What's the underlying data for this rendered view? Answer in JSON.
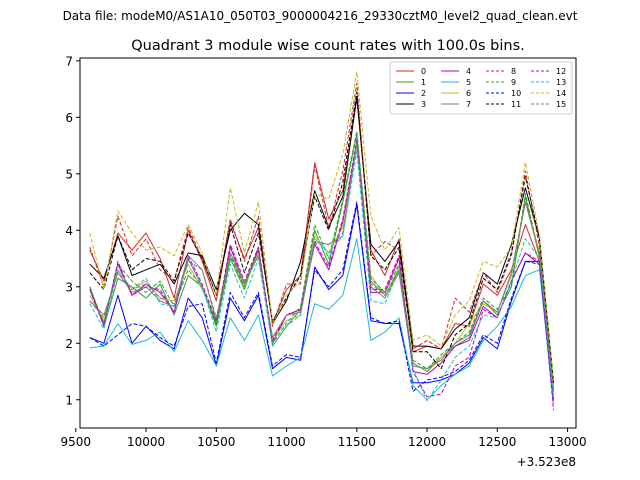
{
  "chart_data": {
    "type": "line",
    "suptitle": "Data file: modeM0/AS1A10_050T03_9000004216_29330cztM0_level2_quad_clean.evt",
    "title": "Quadrant 3 module wise count rates with 100.0s bins.",
    "xlabel": "",
    "ylabel": "",
    "offset_label": "+3.523e8",
    "xlim": [
      9530,
      13060
    ],
    "ylim": [
      0.5,
      7.05
    ],
    "x_ticks": [
      9500,
      10000,
      10500,
      11000,
      11500,
      12000,
      12500,
      13000
    ],
    "x_tick_labels": [
      "9500",
      "10000",
      "10500",
      "11000",
      "11500",
      "12000",
      "12500",
      "13000"
    ],
    "y_ticks": [
      1,
      2,
      3,
      4,
      5,
      6,
      7
    ],
    "y_tick_labels": [
      "1",
      "2",
      "3",
      "4",
      "5",
      "6",
      "7"
    ],
    "grid": false,
    "legend_position": "top-right",
    "legend_columns": 4,
    "x": [
      9600,
      9700,
      9800,
      9900,
      10000,
      10100,
      10200,
      10300,
      10400,
      10500,
      10600,
      10700,
      10800,
      10900,
      11000,
      11100,
      11200,
      11300,
      11400,
      11500,
      11600,
      11700,
      11800,
      11900,
      12000,
      12100,
      12200,
      12300,
      12400,
      12500,
      12600,
      12700,
      12800,
      12900
    ],
    "series": [
      {
        "name": "0",
        "color": "#d62728",
        "dash": "solid",
        "values": [
          3.65,
          3.1,
          3.95,
          3.65,
          3.95,
          3.5,
          2.8,
          4.0,
          3.45,
          2.75,
          4.15,
          3.5,
          4.05,
          2.35,
          2.95,
          3.2,
          5.2,
          4.2,
          4.7,
          6.35,
          3.65,
          3.2,
          3.85,
          1.85,
          1.95,
          1.9,
          2.35,
          2.3,
          3.05,
          2.85,
          3.3,
          4.1,
          3.45,
          1.35
        ]
      },
      {
        "name": "1",
        "color": "#2ca02c",
        "dash": "solid",
        "values": [
          3.0,
          2.3,
          3.15,
          3.0,
          2.8,
          3.05,
          2.5,
          3.2,
          3.0,
          2.3,
          3.5,
          2.95,
          3.7,
          1.95,
          2.3,
          2.6,
          4.0,
          3.4,
          4.5,
          5.7,
          3.1,
          2.85,
          3.3,
          1.65,
          1.5,
          1.75,
          1.95,
          2.1,
          2.75,
          2.5,
          3.0,
          4.6,
          3.5,
          1.15
        ]
      },
      {
        "name": "2",
        "color": "#0000ff",
        "dash": "solid",
        "values": [
          2.1,
          2.0,
          2.85,
          2.0,
          2.3,
          2.05,
          1.9,
          2.8,
          2.45,
          1.6,
          2.8,
          2.4,
          2.85,
          1.55,
          1.75,
          1.7,
          3.35,
          2.95,
          3.2,
          4.45,
          2.4,
          2.35,
          2.35,
          1.3,
          1.3,
          1.35,
          1.45,
          1.65,
          2.1,
          1.9,
          2.75,
          3.45,
          3.45,
          0.95
        ]
      },
      {
        "name": "3",
        "color": "#000000",
        "dash": "solid",
        "values": [
          3.4,
          3.15,
          3.9,
          3.2,
          3.3,
          3.4,
          3.05,
          3.6,
          3.55,
          2.95,
          4.0,
          4.3,
          4.1,
          2.35,
          2.75,
          3.45,
          4.7,
          4.05,
          4.6,
          6.35,
          3.75,
          3.45,
          3.8,
          1.95,
          1.95,
          1.9,
          2.25,
          2.45,
          3.25,
          3.05,
          3.75,
          4.75,
          3.85,
          1.3
        ]
      },
      {
        "name": "4",
        "color": "#bf00bf",
        "dash": "solid",
        "values": [
          2.95,
          2.35,
          3.4,
          2.85,
          3.05,
          2.9,
          2.55,
          3.5,
          3.0,
          2.35,
          3.7,
          3.05,
          3.65,
          2.0,
          2.5,
          2.6,
          3.75,
          3.3,
          4.15,
          5.55,
          2.9,
          2.9,
          3.5,
          1.5,
          1.45,
          1.65,
          1.95,
          2.05,
          2.65,
          2.45,
          3.1,
          3.6,
          3.4,
          1.0
        ]
      },
      {
        "name": "5",
        "color": "#17becf",
        "dash": "solid",
        "values": [
          1.92,
          1.95,
          2.35,
          1.98,
          2.05,
          2.2,
          1.85,
          2.4,
          2.05,
          1.6,
          2.45,
          2.05,
          2.5,
          1.42,
          1.6,
          1.75,
          2.7,
          2.6,
          2.85,
          3.85,
          2.05,
          2.2,
          2.45,
          1.25,
          1.0,
          1.25,
          1.45,
          1.6,
          2.05,
          2.3,
          2.65,
          3.2,
          3.3,
          0.95
        ]
      },
      {
        "name": "6",
        "color": "#bcbd22",
        "dash": "solid",
        "values": [
          2.85,
          2.4,
          3.3,
          2.95,
          3.1,
          2.8,
          2.75,
          3.4,
          2.95,
          2.4,
          3.6,
          3.0,
          3.6,
          2.05,
          2.4,
          2.5,
          3.9,
          3.6,
          4.05,
          5.5,
          3.2,
          2.85,
          3.35,
          1.6,
          1.55,
          1.75,
          2.0,
          2.35,
          2.7,
          2.55,
          3.2,
          4.5,
          3.55,
          1.2
        ]
      },
      {
        "name": "7",
        "color": "#7f7f7f",
        "dash": "solid",
        "values": [
          2.75,
          2.5,
          3.25,
          2.9,
          3.0,
          2.75,
          2.65,
          3.55,
          3.3,
          2.4,
          3.6,
          3.05,
          3.55,
          2.1,
          2.5,
          2.55,
          3.8,
          3.75,
          3.9,
          5.55,
          3.0,
          2.8,
          3.25,
          1.6,
          1.55,
          1.7,
          2.0,
          2.15,
          2.75,
          2.55,
          3.25,
          4.5,
          3.6,
          1.15
        ]
      },
      {
        "name": "8",
        "color": "#d62728",
        "dash": "dashed",
        "values": [
          3.7,
          3.0,
          4.25,
          3.55,
          3.85,
          3.3,
          3.1,
          4.05,
          3.5,
          2.85,
          4.2,
          3.45,
          4.25,
          2.3,
          3.05,
          3.05,
          5.15,
          4.05,
          5.05,
          6.6,
          3.55,
          3.8,
          3.65,
          1.9,
          2.05,
          1.9,
          2.8,
          2.55,
          3.25,
          2.9,
          3.55,
          5.05,
          3.7,
          1.3
        ]
      },
      {
        "name": "9",
        "color": "#2ca02c",
        "dash": "dashed",
        "values": [
          3.0,
          2.35,
          3.4,
          3.1,
          2.9,
          3.1,
          2.65,
          3.3,
          3.0,
          2.35,
          3.55,
          3.0,
          3.7,
          2.0,
          2.35,
          2.65,
          4.1,
          3.5,
          4.55,
          5.75,
          3.15,
          2.9,
          3.4,
          1.7,
          1.55,
          1.8,
          2.0,
          2.2,
          2.8,
          2.6,
          3.05,
          4.65,
          3.55,
          1.2
        ]
      },
      {
        "name": "10",
        "color": "#0000ff",
        "dash": "dashed",
        "values": [
          2.1,
          1.95,
          2.15,
          2.35,
          2.3,
          2.1,
          1.95,
          2.65,
          2.7,
          1.65,
          2.9,
          2.45,
          2.9,
          1.6,
          1.8,
          1.75,
          3.3,
          3.0,
          3.3,
          4.5,
          2.45,
          2.35,
          2.4,
          1.15,
          1.35,
          1.4,
          1.5,
          1.7,
          2.15,
          2.0,
          2.8,
          3.45,
          3.4,
          1.0
        ]
      },
      {
        "name": "11",
        "color": "#000000",
        "dash": "dashed",
        "values": [
          3.25,
          2.95,
          3.9,
          3.3,
          3.5,
          3.45,
          3.1,
          3.95,
          3.5,
          2.85,
          4.1,
          3.25,
          3.95,
          2.4,
          2.8,
          3.2,
          4.6,
          4.0,
          4.85,
          6.45,
          3.55,
          3.3,
          3.7,
          1.85,
          1.85,
          1.55,
          2.15,
          2.35,
          3.15,
          2.95,
          3.6,
          4.95,
          3.85,
          1.3
        ]
      },
      {
        "name": "12",
        "color": "#bf00bf",
        "dash": "dashed",
        "values": [
          2.95,
          2.3,
          3.45,
          2.85,
          3.0,
          2.95,
          2.55,
          3.55,
          3.05,
          2.4,
          3.75,
          3.1,
          3.7,
          2.05,
          2.5,
          2.6,
          3.8,
          3.35,
          4.2,
          5.6,
          2.95,
          2.95,
          3.55,
          1.5,
          1.05,
          1.1,
          1.6,
          1.75,
          2.6,
          2.45,
          3.1,
          3.6,
          3.45,
          0.82
        ]
      },
      {
        "name": "13",
        "color": "#17becf",
        "dash": "dashed",
        "values": [
          2.7,
          2.25,
          3.3,
          2.95,
          3.15,
          2.7,
          2.65,
          3.5,
          3.0,
          2.2,
          3.4,
          2.8,
          3.5,
          1.95,
          2.3,
          2.5,
          3.85,
          3.6,
          3.9,
          5.4,
          2.75,
          2.7,
          3.3,
          1.55,
          0.98,
          1.35,
          1.75,
          1.95,
          2.5,
          2.45,
          3.1,
          3.85,
          3.5,
          1.05
        ]
      },
      {
        "name": "14",
        "color": "#bcbd22",
        "dash": "dashed",
        "values": [
          3.95,
          2.95,
          4.35,
          3.95,
          3.65,
          3.7,
          3.55,
          4.1,
          3.6,
          2.85,
          4.75,
          3.6,
          4.5,
          2.35,
          2.85,
          3.1,
          4.65,
          4.55,
          5.35,
          6.8,
          4.25,
          3.65,
          4.05,
          2.05,
          2.15,
          1.95,
          2.5,
          2.75,
          3.45,
          3.35,
          3.7,
          5.2,
          3.9,
          1.35
        ]
      },
      {
        "name": "15",
        "color": "#7f7f7f",
        "dash": "dashed",
        "values": [
          2.75,
          2.45,
          3.25,
          2.95,
          3.05,
          2.8,
          2.7,
          3.45,
          3.3,
          2.45,
          3.6,
          3.1,
          3.55,
          2.1,
          2.5,
          2.55,
          3.8,
          3.75,
          3.95,
          5.55,
          3.05,
          2.85,
          3.25,
          1.6,
          1.55,
          1.7,
          2.0,
          2.15,
          2.75,
          2.55,
          3.25,
          4.5,
          3.6,
          1.15
        ]
      }
    ]
  }
}
